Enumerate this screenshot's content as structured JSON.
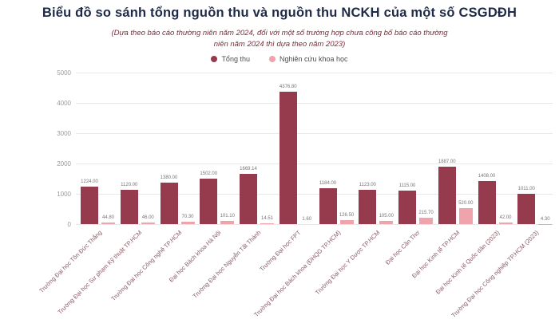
{
  "header": {
    "title": "Biểu đồ so sánh tổng nguồn thu và nguồn thu NCKH của một số CSGDĐH",
    "subtitle_line1": "(Dựa theo báo cáo thường niên năm 2024, đối với một số trường hợp chưa công bố báo cáo thường",
    "subtitle_line2": "niên năm 2024 thì dựa theo năm 2023)"
  },
  "legend": [
    {
      "label": "Tổng thu",
      "color": "#963a4d"
    },
    {
      "label": "Nghiên cứu khoa học",
      "color": "#efa3ac"
    }
  ],
  "colors": {
    "total_bar": "#963a4d",
    "nckh_bar": "#efa3ac",
    "title_text": "#1e2a46",
    "subtitle_text": "#7d2c3a",
    "axis_label": "#9b9b9b",
    "category_label": "#8a5a64",
    "value_label": "#757575",
    "gridline": "#e8e8e8"
  },
  "chart_data": {
    "type": "bar",
    "title": "Biểu đồ so sánh tổng nguồn thu và nguồn thu NCKH của một số CSGDĐH",
    "subtitle": "(Dựa theo báo cáo thường niên năm 2024, đối với một số trường hợp chưa công bố báo cáo thường niên năm 2024 thì dựa theo năm 2023)",
    "categories": [
      "Trường Đại học Tôn Đức Thắng",
      "Trường Đại học Sư phạm Kỹ thuật TP.HCM",
      "Trường Đại học Công nghệ TP.HCM",
      "Đại học Bách khoa Hà Nội",
      "Trường Đại học Nguyễn Tất Thành",
      "Trường Đại học FPT",
      "Trường Đại học Bách khoa (ĐHQG TP.HCM)",
      "Trường Đại học Y Dược TP.HCM",
      "Đại học Cần Thơ",
      "Đại học Kinh tế TP.HCM",
      "Đại học Kinh tế Quốc dân (2023)",
      "Trường Đại học Công nghiệp TP.HCM (2023)"
    ],
    "series": [
      {
        "name": "Tổng thu",
        "color": "#963a4d",
        "values": [
          1224.0,
          1120.0,
          1380.0,
          1502.0,
          1669.14,
          4376.8,
          1184.0,
          1123.0,
          1115.0,
          1887.0,
          1408.0,
          1011.0
        ]
      },
      {
        "name": "Nghiên cứu khoa học",
        "color": "#efa3ac",
        "values": [
          44.8,
          46.0,
          70.3,
          101.1,
          14.51,
          1.6,
          126.5,
          105.0,
          215.7,
          520.0,
          42.0,
          4.3
        ]
      }
    ],
    "ylim": [
      0,
      5000
    ],
    "yticks": [
      0,
      1000,
      2000,
      3000,
      4000,
      5000
    ],
    "grid": true,
    "legend_position": "top-center",
    "value_labels": true,
    "value_label_format": "0.00"
  }
}
